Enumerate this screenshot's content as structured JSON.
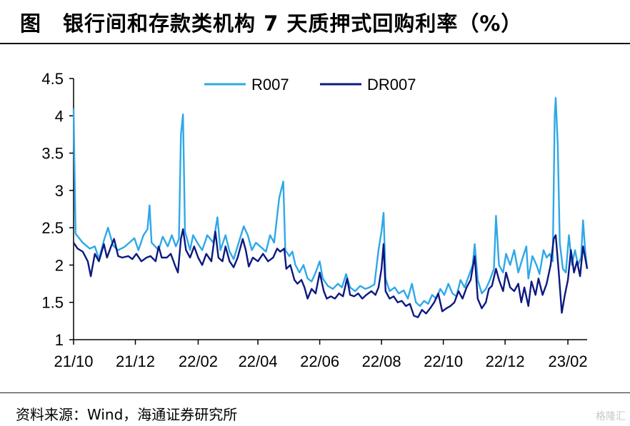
{
  "title": "图　银行间和存款类机构 7 天质押式回购利率（%）",
  "source": "资料来源：Wind，海通证券研究所",
  "watermark": "格隆汇",
  "colors": {
    "R007": "#2EA8E8",
    "DR007": "#0D1880"
  },
  "chart_data": {
    "type": "line",
    "title": "银行间和存款类机构 7 天质押式回购利率（%）",
    "xlabel": "",
    "ylabel": "",
    "x_ticks": [
      "21/10",
      "21/12",
      "22/02",
      "22/04",
      "22/06",
      "22/08",
      "22/10",
      "22/12",
      "23/02"
    ],
    "x_range": [
      "2021-10-01",
      "2023-02-20"
    ],
    "ylim": [
      1,
      4.5
    ],
    "y_ticks": [
      1,
      1.5,
      2,
      2.5,
      3,
      3.5,
      4,
      4.5
    ],
    "legend_position": "top-center",
    "grid": false,
    "series": [
      {
        "name": "R007",
        "points": [
          [
            "2021-10-01",
            4.1
          ],
          [
            "2021-10-03",
            2.42
          ],
          [
            "2021-10-10",
            2.3
          ],
          [
            "2021-10-17",
            2.22
          ],
          [
            "2021-10-22",
            2.25
          ],
          [
            "2021-10-26",
            2.08
          ],
          [
            "2021-10-31",
            2.33
          ],
          [
            "2021-11-04",
            2.5
          ],
          [
            "2021-11-09",
            2.26
          ],
          [
            "2021-11-14",
            2.2
          ],
          [
            "2021-11-20",
            2.24
          ],
          [
            "2021-11-25",
            2.3
          ],
          [
            "2021-11-30",
            2.36
          ],
          [
            "2021-12-04",
            2.2
          ],
          [
            "2021-12-09",
            2.4
          ],
          [
            "2021-12-13",
            2.48
          ],
          [
            "2021-12-15",
            2.8
          ],
          [
            "2021-12-17",
            2.3
          ],
          [
            "2021-12-24",
            2.2
          ],
          [
            "2021-12-28",
            2.38
          ],
          [
            "2022-01-02",
            2.25
          ],
          [
            "2022-01-06",
            2.4
          ],
          [
            "2022-01-10",
            2.25
          ],
          [
            "2022-01-13",
            2.35
          ],
          [
            "2022-01-15",
            3.75
          ],
          [
            "2022-01-17",
            4.02
          ],
          [
            "2022-01-19",
            2.45
          ],
          [
            "2022-01-24",
            2.2
          ],
          [
            "2022-01-27",
            2.4
          ],
          [
            "2022-02-01",
            2.28
          ],
          [
            "2022-02-05",
            2.2
          ],
          [
            "2022-02-10",
            2.4
          ],
          [
            "2022-02-16",
            2.3
          ],
          [
            "2022-02-20",
            2.64
          ],
          [
            "2022-02-23",
            2.2
          ],
          [
            "2022-02-28",
            2.4
          ],
          [
            "2022-03-04",
            2.18
          ],
          [
            "2022-03-08",
            2.08
          ],
          [
            "2022-03-13",
            2.3
          ],
          [
            "2022-03-18",
            2.52
          ],
          [
            "2022-03-22",
            2.4
          ],
          [
            "2022-03-26",
            2.2
          ],
          [
            "2022-03-30",
            2.3
          ],
          [
            "2022-04-04",
            2.24
          ],
          [
            "2022-04-09",
            2.18
          ],
          [
            "2022-04-13",
            2.4
          ],
          [
            "2022-04-17",
            2.3
          ],
          [
            "2022-04-22",
            2.9
          ],
          [
            "2022-04-26",
            3.12
          ],
          [
            "2022-04-28",
            2.2
          ],
          [
            "2022-05-02",
            2.12
          ],
          [
            "2022-05-05",
            2.18
          ],
          [
            "2022-05-08",
            2.0
          ],
          [
            "2022-05-12",
            1.9
          ],
          [
            "2022-05-16",
            2.0
          ],
          [
            "2022-05-20",
            1.82
          ],
          [
            "2022-05-24",
            1.78
          ],
          [
            "2022-05-28",
            1.9
          ],
          [
            "2022-06-01",
            2.05
          ],
          [
            "2022-06-04",
            1.82
          ],
          [
            "2022-06-09",
            1.72
          ],
          [
            "2022-06-14",
            1.68
          ],
          [
            "2022-06-19",
            1.75
          ],
          [
            "2022-06-23",
            1.7
          ],
          [
            "2022-06-27",
            1.88
          ],
          [
            "2022-07-01",
            1.7
          ],
          [
            "2022-07-06",
            1.65
          ],
          [
            "2022-07-11",
            1.72
          ],
          [
            "2022-07-16",
            1.68
          ],
          [
            "2022-07-20",
            1.7
          ],
          [
            "2022-07-25",
            1.74
          ],
          [
            "2022-07-29",
            2.2
          ],
          [
            "2022-08-01",
            2.45
          ],
          [
            "2022-08-03",
            2.7
          ],
          [
            "2022-08-05",
            1.82
          ],
          [
            "2022-08-09",
            1.65
          ],
          [
            "2022-08-14",
            1.7
          ],
          [
            "2022-08-18",
            1.62
          ],
          [
            "2022-08-23",
            1.66
          ],
          [
            "2022-08-27",
            1.55
          ],
          [
            "2022-08-31",
            1.75
          ],
          [
            "2022-09-04",
            1.5
          ],
          [
            "2022-09-08",
            1.45
          ],
          [
            "2022-09-12",
            1.52
          ],
          [
            "2022-09-16",
            1.48
          ],
          [
            "2022-09-20",
            1.6
          ],
          [
            "2022-09-24",
            1.55
          ],
          [
            "2022-09-28",
            1.68
          ],
          [
            "2022-10-02",
            1.6
          ],
          [
            "2022-10-06",
            1.75
          ],
          [
            "2022-10-10",
            1.62
          ],
          [
            "2022-10-14",
            1.58
          ],
          [
            "2022-10-18",
            1.8
          ],
          [
            "2022-10-22",
            1.7
          ],
          [
            "2022-10-26",
            1.85
          ],
          [
            "2022-10-30",
            2.0
          ],
          [
            "2022-11-01",
            2.28
          ],
          [
            "2022-11-04",
            1.8
          ],
          [
            "2022-11-08",
            1.62
          ],
          [
            "2022-11-12",
            1.68
          ],
          [
            "2022-11-16",
            1.8
          ],
          [
            "2022-11-20",
            1.95
          ],
          [
            "2022-11-22",
            2.66
          ],
          [
            "2022-11-25",
            2.0
          ],
          [
            "2022-11-29",
            1.9
          ],
          [
            "2022-12-02",
            2.15
          ],
          [
            "2022-12-06",
            2.0
          ],
          [
            "2022-12-10",
            2.2
          ],
          [
            "2022-12-14",
            1.9
          ],
          [
            "2022-12-18",
            2.08
          ],
          [
            "2022-12-22",
            2.25
          ],
          [
            "2022-12-24",
            1.82
          ],
          [
            "2022-12-28",
            2.12
          ],
          [
            "2023-01-01",
            2.0
          ],
          [
            "2023-01-04",
            1.88
          ],
          [
            "2023-01-08",
            2.2
          ],
          [
            "2023-01-11",
            2.1
          ],
          [
            "2023-01-14",
            2.15
          ],
          [
            "2023-01-17",
            2.05
          ],
          [
            "2023-01-19",
            4.0
          ],
          [
            "2023-01-20",
            4.24
          ],
          [
            "2023-01-22",
            3.6
          ],
          [
            "2023-01-24",
            2.3
          ],
          [
            "2023-01-27",
            1.95
          ],
          [
            "2023-01-30",
            1.9
          ],
          [
            "2023-02-02",
            2.4
          ],
          [
            "2023-02-05",
            2.0
          ],
          [
            "2023-02-08",
            2.2
          ],
          [
            "2023-02-11",
            2.0
          ],
          [
            "2023-02-14",
            2.1
          ],
          [
            "2023-02-16",
            2.6
          ],
          [
            "2023-02-18",
            2.2
          ],
          [
            "2023-02-20",
            1.95
          ]
        ]
      },
      {
        "name": "DR007",
        "points": [
          [
            "2021-10-01",
            2.3
          ],
          [
            "2021-10-05",
            2.22
          ],
          [
            "2021-10-10",
            2.18
          ],
          [
            "2021-10-15",
            2.05
          ],
          [
            "2021-10-18",
            1.85
          ],
          [
            "2021-10-22",
            2.15
          ],
          [
            "2021-10-26",
            2.05
          ],
          [
            "2021-10-31",
            2.28
          ],
          [
            "2021-11-03",
            2.1
          ],
          [
            "2021-11-07",
            2.25
          ],
          [
            "2021-11-10",
            2.35
          ],
          [
            "2021-11-14",
            2.12
          ],
          [
            "2021-11-18",
            2.1
          ],
          [
            "2021-11-24",
            2.12
          ],
          [
            "2021-11-28",
            2.08
          ],
          [
            "2021-12-02",
            2.15
          ],
          [
            "2021-12-07",
            2.05
          ],
          [
            "2021-12-12",
            2.1
          ],
          [
            "2021-12-16",
            2.12
          ],
          [
            "2021-12-21",
            2.05
          ],
          [
            "2021-12-24",
            2.25
          ],
          [
            "2021-12-27",
            2.1
          ],
          [
            "2022-01-01",
            2.1
          ],
          [
            "2022-01-05",
            2.15
          ],
          [
            "2022-01-09",
            2.0
          ],
          [
            "2022-01-12",
            1.9
          ],
          [
            "2022-01-15",
            2.35
          ],
          [
            "2022-01-17",
            2.48
          ],
          [
            "2022-01-20",
            2.2
          ],
          [
            "2022-01-24",
            2.1
          ],
          [
            "2022-01-28",
            2.25
          ],
          [
            "2022-02-01",
            2.1
          ],
          [
            "2022-02-05",
            2.0
          ],
          [
            "2022-02-09",
            2.15
          ],
          [
            "2022-02-14",
            2.05
          ],
          [
            "2022-02-18",
            2.45
          ],
          [
            "2022-02-21",
            2.1
          ],
          [
            "2022-02-25",
            2.05
          ],
          [
            "2022-02-28",
            2.25
          ],
          [
            "2022-03-04",
            2.05
          ],
          [
            "2022-03-08",
            1.97
          ],
          [
            "2022-03-12",
            2.1
          ],
          [
            "2022-03-17",
            2.35
          ],
          [
            "2022-03-20",
            2.2
          ],
          [
            "2022-03-23",
            1.98
          ],
          [
            "2022-03-27",
            2.1
          ],
          [
            "2022-04-01",
            2.05
          ],
          [
            "2022-04-06",
            2.15
          ],
          [
            "2022-04-11",
            2.05
          ],
          [
            "2022-04-16",
            2.1
          ],
          [
            "2022-04-20",
            2.22
          ],
          [
            "2022-04-23",
            2.18
          ],
          [
            "2022-04-27",
            2.22
          ],
          [
            "2022-04-29",
            1.95
          ],
          [
            "2022-05-03",
            2.0
          ],
          [
            "2022-05-07",
            1.8
          ],
          [
            "2022-05-10",
            1.75
          ],
          [
            "2022-05-14",
            1.8
          ],
          [
            "2022-05-17",
            1.7
          ],
          [
            "2022-05-20",
            1.55
          ],
          [
            "2022-05-24",
            1.68
          ],
          [
            "2022-05-28",
            1.62
          ],
          [
            "2022-06-01",
            1.9
          ],
          [
            "2022-06-05",
            1.65
          ],
          [
            "2022-06-08",
            1.55
          ],
          [
            "2022-06-12",
            1.58
          ],
          [
            "2022-06-16",
            1.55
          ],
          [
            "2022-06-20",
            1.62
          ],
          [
            "2022-06-24",
            1.58
          ],
          [
            "2022-06-28",
            1.82
          ],
          [
            "2022-07-01",
            1.6
          ],
          [
            "2022-07-05",
            1.58
          ],
          [
            "2022-07-09",
            1.62
          ],
          [
            "2022-07-13",
            1.55
          ],
          [
            "2022-07-17",
            1.6
          ],
          [
            "2022-07-22",
            1.65
          ],
          [
            "2022-07-26",
            1.6
          ],
          [
            "2022-07-29",
            1.7
          ],
          [
            "2022-08-01",
            1.95
          ],
          [
            "2022-08-03",
            2.28
          ],
          [
            "2022-08-05",
            1.65
          ],
          [
            "2022-08-09",
            1.55
          ],
          [
            "2022-08-13",
            1.58
          ],
          [
            "2022-08-17",
            1.5
          ],
          [
            "2022-08-21",
            1.52
          ],
          [
            "2022-08-25",
            1.45
          ],
          [
            "2022-08-29",
            1.48
          ],
          [
            "2022-09-02",
            1.32
          ],
          [
            "2022-09-06",
            1.3
          ],
          [
            "2022-09-10",
            1.4
          ],
          [
            "2022-09-14",
            1.35
          ],
          [
            "2022-09-18",
            1.42
          ],
          [
            "2022-09-22",
            1.5
          ],
          [
            "2022-09-26",
            1.62
          ],
          [
            "2022-09-30",
            1.38
          ],
          [
            "2022-10-04",
            1.42
          ],
          [
            "2022-10-08",
            1.45
          ],
          [
            "2022-10-12",
            1.5
          ],
          [
            "2022-10-16",
            1.65
          ],
          [
            "2022-10-20",
            1.55
          ],
          [
            "2022-10-24",
            1.7
          ],
          [
            "2022-10-28",
            1.8
          ],
          [
            "2022-11-01",
            2.12
          ],
          [
            "2022-11-04",
            1.55
          ],
          [
            "2022-11-08",
            1.42
          ],
          [
            "2022-11-12",
            1.5
          ],
          [
            "2022-11-15",
            1.68
          ],
          [
            "2022-11-18",
            1.72
          ],
          [
            "2022-11-22",
            1.95
          ],
          [
            "2022-11-25",
            1.8
          ],
          [
            "2022-11-29",
            1.65
          ],
          [
            "2022-12-02",
            1.9
          ],
          [
            "2022-12-06",
            1.7
          ],
          [
            "2022-12-10",
            1.65
          ],
          [
            "2022-12-14",
            1.75
          ],
          [
            "2022-12-17",
            1.5
          ],
          [
            "2022-12-20",
            1.7
          ],
          [
            "2022-12-24",
            1.45
          ],
          [
            "2022-12-27",
            1.78
          ],
          [
            "2022-12-31",
            1.6
          ],
          [
            "2023-01-03",
            1.82
          ],
          [
            "2023-01-07",
            1.6
          ],
          [
            "2023-01-11",
            1.75
          ],
          [
            "2023-01-15",
            2.0
          ],
          [
            "2023-01-18",
            2.35
          ],
          [
            "2023-01-20",
            2.4
          ],
          [
            "2023-01-23",
            1.9
          ],
          [
            "2023-01-26",
            1.36
          ],
          [
            "2023-01-29",
            1.6
          ],
          [
            "2023-02-01",
            1.8
          ],
          [
            "2023-02-04",
            2.2
          ],
          [
            "2023-02-07",
            1.9
          ],
          [
            "2023-02-10",
            2.05
          ],
          [
            "2023-02-13",
            1.85
          ],
          [
            "2023-02-16",
            2.25
          ],
          [
            "2023-02-18",
            2.1
          ],
          [
            "2023-02-20",
            1.95
          ]
        ]
      }
    ]
  }
}
